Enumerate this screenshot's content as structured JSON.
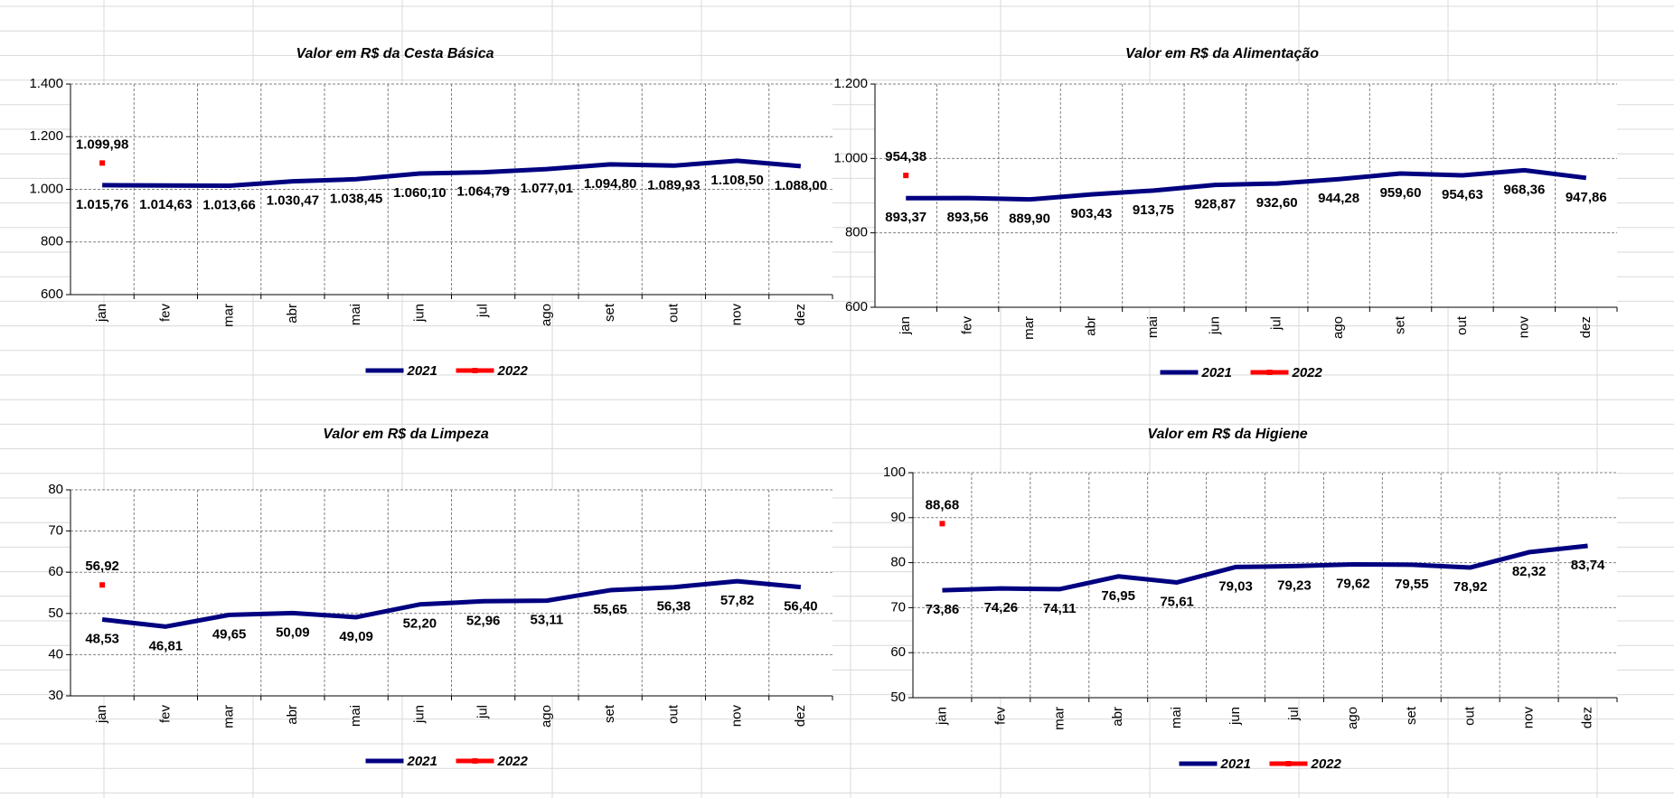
{
  "chart_data": [
    {
      "type": "line",
      "title": "Valor em R$ da Cesta Básica",
      "categories": [
        "jan",
        "fev",
        "mar",
        "abr",
        "mai",
        "jun",
        "jul",
        "ago",
        "set",
        "out",
        "nov",
        "dez"
      ],
      "series": [
        {
          "name": "2021",
          "color": "#000080",
          "values": [
            1015.76,
            1014.63,
            1013.66,
            1030.47,
            1038.45,
            1060.1,
            1064.79,
            1077.01,
            1094.8,
            1089.93,
            1108.5,
            1088.0
          ],
          "value_labels": [
            "1.015,76",
            "1.014,63",
            "1.013,66",
            "1.030,47",
            "1.038,45",
            "1.060,10",
            "1.064,79",
            "1.077,01",
            "1.094,80",
            "1.089,93",
            "1.108,50",
            "1.088,00"
          ]
        },
        {
          "name": "2022",
          "color": "#ff0000",
          "values": [
            1099.98,
            null,
            null,
            null,
            null,
            null,
            null,
            null,
            null,
            null,
            null,
            null
          ],
          "value_labels": [
            "1.099,98",
            null,
            null,
            null,
            null,
            null,
            null,
            null,
            null,
            null,
            null,
            null
          ]
        }
      ],
      "ylim": [
        600,
        1400
      ],
      "yticks": [
        {
          "value": 600,
          "label": "600"
        },
        {
          "value": 800,
          "label": "800"
        },
        {
          "value": 1000,
          "label": "1.000"
        },
        {
          "value": 1200,
          "label": "1.200"
        },
        {
          "value": 1400,
          "label": "1.400"
        }
      ],
      "grid": true,
      "legend": "bottom"
    },
    {
      "type": "line",
      "title": "Valor em R$ da Alimentação",
      "categories": [
        "jan",
        "fev",
        "mar",
        "abr",
        "mai",
        "jun",
        "jul",
        "ago",
        "set",
        "out",
        "nov",
        "dez"
      ],
      "series": [
        {
          "name": "2021",
          "color": "#000080",
          "values": [
            893.37,
            893.56,
            889.9,
            903.43,
            913.75,
            928.87,
            932.6,
            944.28,
            959.6,
            954.63,
            968.36,
            947.86
          ],
          "value_labels": [
            "893,37",
            "893,56",
            "889,90",
            "903,43",
            "913,75",
            "928,87",
            "932,60",
            "944,28",
            "959,60",
            "954,63",
            "968,36",
            "947,86"
          ]
        },
        {
          "name": "2022",
          "color": "#ff0000",
          "values": [
            954.38,
            null,
            null,
            null,
            null,
            null,
            null,
            null,
            null,
            null,
            null,
            null
          ],
          "value_labels": [
            "954,38",
            null,
            null,
            null,
            null,
            null,
            null,
            null,
            null,
            null,
            null,
            null
          ]
        }
      ],
      "ylim": [
        600,
        1200
      ],
      "yticks": [
        600,
        800,
        {
          "value": 1000,
          "label": "1.000"
        },
        {
          "value": 1200,
          "label": "1.200"
        }
      ],
      "grid": true,
      "legend": "bottom"
    },
    {
      "type": "line",
      "title": "Valor em R$ da Limpeza",
      "categories": [
        "jan",
        "fev",
        "mar",
        "abr",
        "mai",
        "jun",
        "jul",
        "ago",
        "set",
        "out",
        "nov",
        "dez"
      ],
      "series": [
        {
          "name": "2021",
          "color": "#000080",
          "values": [
            48.53,
            46.81,
            49.65,
            50.09,
            49.09,
            52.2,
            52.96,
            53.11,
            55.65,
            56.38,
            57.82,
            56.4
          ],
          "value_labels": [
            "48,53",
            "46,81",
            "49,65",
            "50,09",
            "49,09",
            "52,20",
            "52,96",
            "53,11",
            "55,65",
            "56,38",
            "57,82",
            "56,40"
          ]
        },
        {
          "name": "2022",
          "color": "#ff0000",
          "values": [
            56.92,
            null,
            null,
            null,
            null,
            null,
            null,
            null,
            null,
            null,
            null,
            null
          ],
          "value_labels": [
            "56,92",
            null,
            null,
            null,
            null,
            null,
            null,
            null,
            null,
            null,
            null,
            null
          ]
        }
      ],
      "ylim": [
        30,
        80
      ],
      "yticks": [
        30,
        40,
        50,
        60,
        70,
        80
      ],
      "grid": true,
      "legend": "bottom"
    },
    {
      "type": "line",
      "title": "Valor em R$ da Higiene",
      "categories": [
        "jan",
        "fev",
        "mar",
        "abr",
        "mai",
        "jun",
        "jul",
        "ago",
        "set",
        "out",
        "nov",
        "dez"
      ],
      "series": [
        {
          "name": "2021",
          "color": "#000080",
          "values": [
            73.86,
            74.26,
            74.11,
            76.95,
            75.61,
            79.03,
            79.23,
            79.62,
            79.55,
            78.92,
            82.32,
            83.74
          ],
          "value_labels": [
            "73,86",
            "74,26",
            "74,11",
            "76,95",
            "75,61",
            "79,03",
            "79,23",
            "79,62",
            "79,55",
            "78,92",
            "82,32",
            "83,74"
          ]
        },
        {
          "name": "2022",
          "color": "#ff0000",
          "values": [
            88.68,
            null,
            null,
            null,
            null,
            null,
            null,
            null,
            null,
            null,
            null,
            null
          ],
          "value_labels": [
            "88,68",
            null,
            null,
            null,
            null,
            null,
            null,
            null,
            null,
            null,
            null,
            null
          ]
        }
      ],
      "ylim": [
        50,
        100
      ],
      "yticks": [
        50,
        60,
        70,
        80,
        90,
        100
      ],
      "grid": true,
      "legend": "bottom"
    }
  ]
}
